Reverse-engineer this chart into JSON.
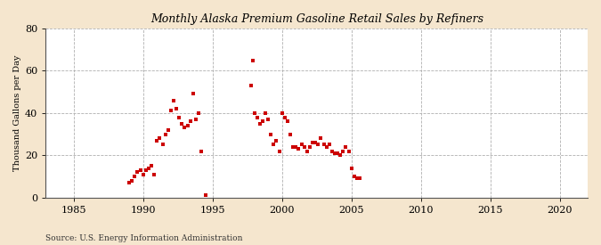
{
  "title": "Monthly Alaska Premium Gasoline Retail Sales by Refiners",
  "ylabel": "Thousand Gallons per Day",
  "source": "Source: U.S. Energy Information Administration",
  "background_color": "#f5e6ce",
  "plot_background_color": "#ffffff",
  "marker_color": "#cc0000",
  "xlim": [
    1983,
    2022
  ],
  "ylim": [
    0,
    80
  ],
  "xticks": [
    1985,
    1990,
    1995,
    2000,
    2005,
    2010,
    2015,
    2020
  ],
  "yticks": [
    0,
    20,
    40,
    60,
    80
  ],
  "data_x": [
    1989.0,
    1989.2,
    1989.4,
    1989.6,
    1989.8,
    1990.0,
    1990.2,
    1990.4,
    1990.6,
    1990.8,
    1991.0,
    1991.2,
    1991.4,
    1991.6,
    1991.8,
    1992.0,
    1992.2,
    1992.4,
    1992.6,
    1992.8,
    1993.0,
    1993.2,
    1993.4,
    1993.6,
    1993.8,
    1994.0,
    1994.2,
    1994.5,
    1997.8,
    1997.9,
    1998.0,
    1998.2,
    1998.4,
    1998.6,
    1998.8,
    1999.0,
    1999.2,
    1999.4,
    1999.6,
    1999.8,
    2000.0,
    2000.2,
    2000.4,
    2000.6,
    2000.8,
    2001.0,
    2001.2,
    2001.4,
    2001.6,
    2001.8,
    2002.0,
    2002.2,
    2002.4,
    2002.6,
    2002.8,
    2003.0,
    2003.2,
    2003.4,
    2003.6,
    2003.8,
    2004.0,
    2004.2,
    2004.4,
    2004.6,
    2004.8,
    2005.0,
    2005.2,
    2005.4,
    2005.6
  ],
  "data_y": [
    7.0,
    8.0,
    10.0,
    12.0,
    13.0,
    11.0,
    13.0,
    14.0,
    15.0,
    11.0,
    27.0,
    28.0,
    25.0,
    30.0,
    32.0,
    41.0,
    46.0,
    42.0,
    38.0,
    35.0,
    33.0,
    34.0,
    36.0,
    49.0,
    37.0,
    40.0,
    22.0,
    1.0,
    53.0,
    65.0,
    40.0,
    38.0,
    35.0,
    36.0,
    40.0,
    37.0,
    30.0,
    25.0,
    27.0,
    22.0,
    40.0,
    38.0,
    36.0,
    30.0,
    24.0,
    24.0,
    23.0,
    25.0,
    24.0,
    22.0,
    24.0,
    26.0,
    26.0,
    25.0,
    28.0,
    25.0,
    24.0,
    25.0,
    22.0,
    21.0,
    21.0,
    20.0,
    22.0,
    24.0,
    22.0,
    14.0,
    10.0,
    9.0,
    9.0
  ]
}
